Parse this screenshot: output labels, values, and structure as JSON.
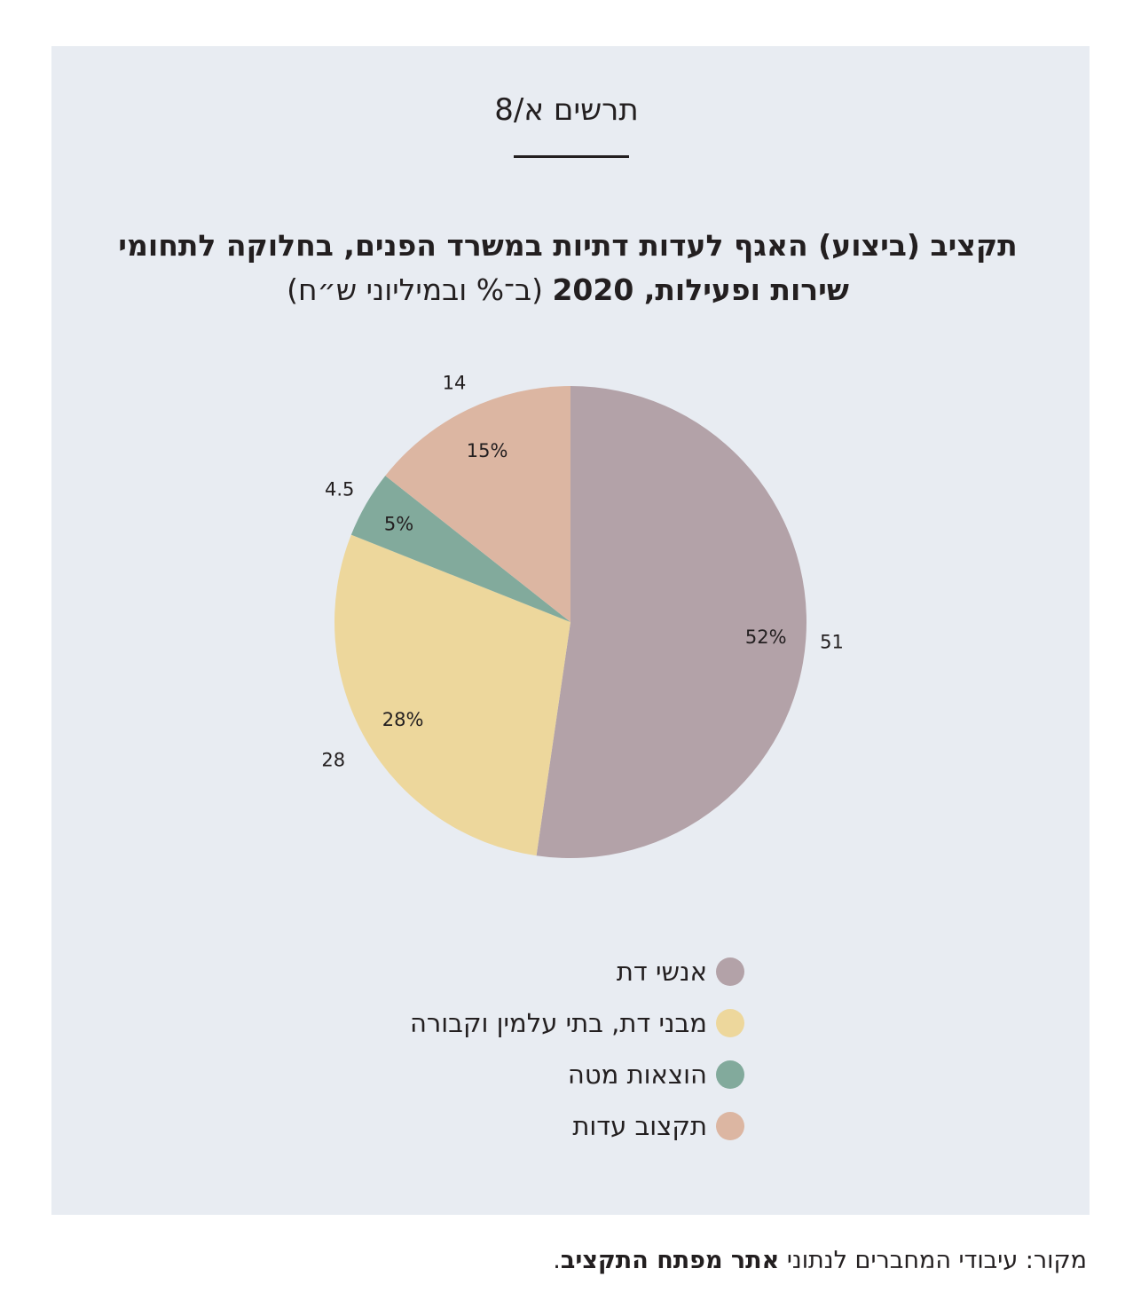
{
  "figure_label": "תרשים א/8",
  "title": {
    "line1": "תקציב (ביצוע) האגף לעדות דתיות במשרד הפנים, בחלוקה לתחומי",
    "line2_bold": "שירות ופעילות, 2020",
    "line2_unit": "(ב־% ובמיליוני ש״ח)"
  },
  "chart_data": {
    "type": "pie",
    "title": "תקציב (ביצוע) האגף לעדות דתיות במשרד הפנים, בחלוקה לתחומי שירות ופעילות, 2020",
    "unit": "(ב־% ובמיליוני ש״ח)",
    "start": "12 o'clock",
    "direction": "clockwise",
    "slices": [
      {
        "name": "אנשי דת",
        "value": 51,
        "value_label": "51",
        "percent": 52,
        "percent_label": "52%",
        "color": "#b3a2a8"
      },
      {
        "name": "מבני דת, בתי עלמין וקבורה",
        "value": 28,
        "value_label": "28",
        "percent": 28,
        "percent_label": "28%",
        "color": "#edd79c"
      },
      {
        "name": "הוצאות מטה",
        "value": 4.5,
        "value_label": "4.5",
        "percent": 5,
        "percent_label": "5%",
        "color": "#82aa9c"
      },
      {
        "name": "תקצוב עדות",
        "value": 14,
        "value_label": "14",
        "percent": 15,
        "percent_label": "15%",
        "color": "#dcb6a2"
      }
    ],
    "legend_position": "bottom-center"
  },
  "source": {
    "prefix": "מקור: עיבודי המחברים לנתוני",
    "bold": "אתר מפתח התקציב",
    "suffix": "."
  }
}
